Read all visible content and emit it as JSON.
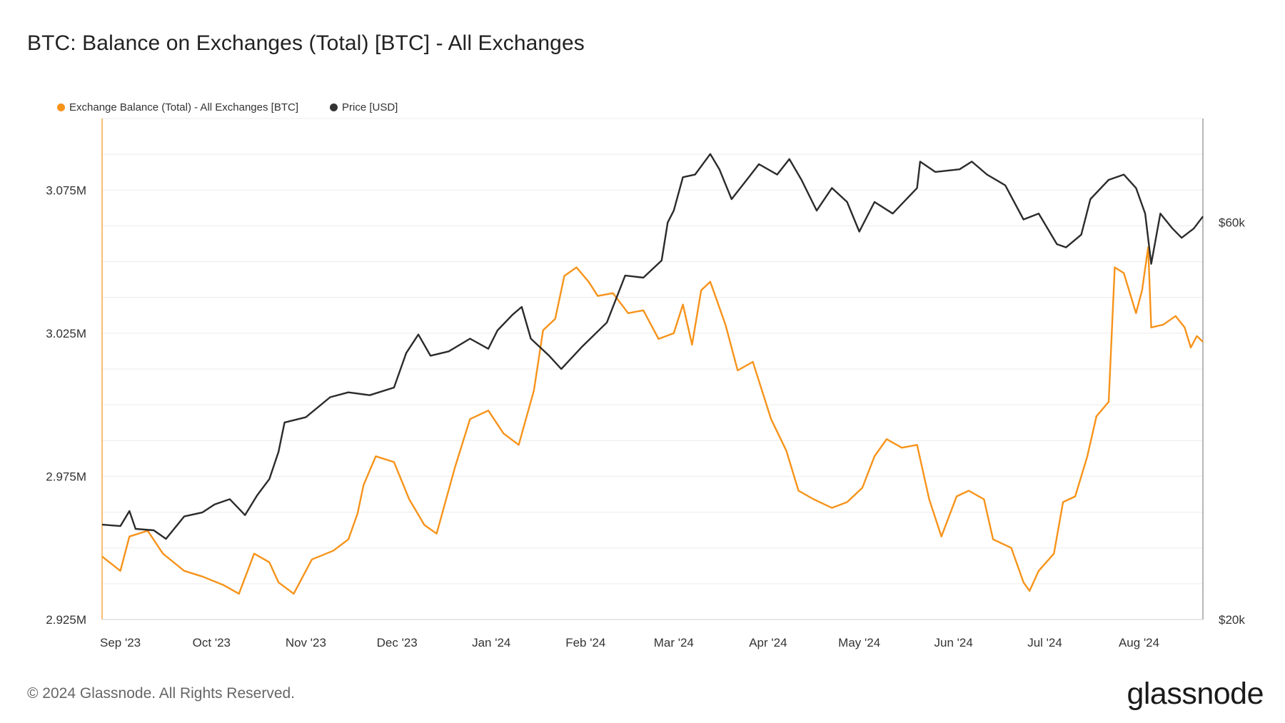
{
  "title": "BTC: Balance on Exchanges (Total) [BTC] - All Exchanges",
  "footer": "© 2024 Glassnode. All Rights Reserved.",
  "logo": "glassnode",
  "colors": {
    "balance": "#F7931A",
    "price": "#2b2b2b",
    "grid": "#ececec"
  },
  "legend": [
    {
      "label": "Exchange Balance (Total) - All Exchanges [BTC]",
      "color": "#F7931A"
    },
    {
      "label": "Price [USD]",
      "color": "#333333"
    }
  ],
  "chart_data": {
    "type": "line",
    "title": "BTC: Balance on Exchanges (Total) [BTC] - All Exchanges",
    "x_range": [
      "2023-08-26",
      "2024-08-22"
    ],
    "x_ticks": [
      {
        "date": "2023-09-01",
        "label": "Sep '23"
      },
      {
        "date": "2023-10-01",
        "label": "Oct '23"
      },
      {
        "date": "2023-11-01",
        "label": "Nov '23"
      },
      {
        "date": "2023-12-01",
        "label": "Dec '23"
      },
      {
        "date": "2024-01-01",
        "label": "Jan '24"
      },
      {
        "date": "2024-02-01",
        "label": "Feb '24"
      },
      {
        "date": "2024-03-01",
        "label": "Mar '24"
      },
      {
        "date": "2024-04-01",
        "label": "Apr '24"
      },
      {
        "date": "2024-05-01",
        "label": "May '24"
      },
      {
        "date": "2024-06-01",
        "label": "Jun '24"
      },
      {
        "date": "2024-07-01",
        "label": "Jul '24"
      },
      {
        "date": "2024-08-01",
        "label": "Aug '24"
      }
    ],
    "y_left": {
      "scale": "linear",
      "range": [
        2925000,
        3100000
      ],
      "ticks": [
        {
          "value": 2925000,
          "label": "2.925M"
        },
        {
          "value": 2975000,
          "label": "2.975M"
        },
        {
          "value": 3025000,
          "label": "3.025M"
        },
        {
          "value": 3075000,
          "label": "3.075M"
        }
      ]
    },
    "y_right": {
      "scale": "log",
      "range": [
        20000,
        80000
      ],
      "ticks": [
        {
          "value": 20000,
          "label": "$20k"
        },
        {
          "value": 60000,
          "label": "$60k"
        }
      ]
    },
    "grid": true,
    "legend_position": "top-left",
    "series": [
      {
        "name": "Exchange Balance (Total) - All Exchanges [BTC]",
        "axis": "left",
        "points": [
          [
            "2023-08-26",
            2947000
          ],
          [
            "2023-09-01",
            2942000
          ],
          [
            "2023-09-04",
            2954000
          ],
          [
            "2023-09-10",
            2956000
          ],
          [
            "2023-09-15",
            2948000
          ],
          [
            "2023-09-22",
            2942000
          ],
          [
            "2023-09-28",
            2940000
          ],
          [
            "2023-10-05",
            2937000
          ],
          [
            "2023-10-10",
            2934000
          ],
          [
            "2023-10-15",
            2948000
          ],
          [
            "2023-10-20",
            2945000
          ],
          [
            "2023-10-23",
            2938000
          ],
          [
            "2023-10-28",
            2934000
          ],
          [
            "2023-11-03",
            2946000
          ],
          [
            "2023-11-10",
            2949000
          ],
          [
            "2023-11-15",
            2953000
          ],
          [
            "2023-11-18",
            2962000
          ],
          [
            "2023-11-20",
            2972000
          ],
          [
            "2023-11-24",
            2982000
          ],
          [
            "2023-11-30",
            2980000
          ],
          [
            "2023-12-05",
            2967000
          ],
          [
            "2023-12-10",
            2958000
          ],
          [
            "2023-12-14",
            2955000
          ],
          [
            "2023-12-20",
            2978000
          ],
          [
            "2023-12-25",
            2995000
          ],
          [
            "2023-12-31",
            2998000
          ],
          [
            "2024-01-05",
            2990000
          ],
          [
            "2024-01-10",
            2986000
          ],
          [
            "2024-01-15",
            3005000
          ],
          [
            "2024-01-18",
            3026000
          ],
          [
            "2024-01-22",
            3030000
          ],
          [
            "2024-01-25",
            3045000
          ],
          [
            "2024-01-29",
            3048000
          ],
          [
            "2024-02-02",
            3043000
          ],
          [
            "2024-02-05",
            3038000
          ],
          [
            "2024-02-10",
            3039000
          ],
          [
            "2024-02-15",
            3032000
          ],
          [
            "2024-02-20",
            3033000
          ],
          [
            "2024-02-25",
            3023000
          ],
          [
            "2024-03-01",
            3025000
          ],
          [
            "2024-03-04",
            3035000
          ],
          [
            "2024-03-07",
            3021000
          ],
          [
            "2024-03-10",
            3040000
          ],
          [
            "2024-03-13",
            3043000
          ],
          [
            "2024-03-18",
            3028000
          ],
          [
            "2024-03-22",
            3012000
          ],
          [
            "2024-03-27",
            3015000
          ],
          [
            "2024-04-02",
            2995000
          ],
          [
            "2024-04-07",
            2984000
          ],
          [
            "2024-04-11",
            2970000
          ],
          [
            "2024-04-16",
            2967000
          ],
          [
            "2024-04-22",
            2964000
          ],
          [
            "2024-04-27",
            2966000
          ],
          [
            "2024-05-02",
            2971000
          ],
          [
            "2024-05-06",
            2982000
          ],
          [
            "2024-05-10",
            2988000
          ],
          [
            "2024-05-15",
            2985000
          ],
          [
            "2024-05-20",
            2986000
          ],
          [
            "2024-05-24",
            2967000
          ],
          [
            "2024-05-28",
            2954000
          ],
          [
            "2024-06-02",
            2968000
          ],
          [
            "2024-06-06",
            2970000
          ],
          [
            "2024-06-11",
            2967000
          ],
          [
            "2024-06-14",
            2953000
          ],
          [
            "2024-06-20",
            2950000
          ],
          [
            "2024-06-24",
            2938000
          ],
          [
            "2024-06-26",
            2935000
          ],
          [
            "2024-06-29",
            2942000
          ],
          [
            "2024-07-04",
            2948000
          ],
          [
            "2024-07-07",
            2966000
          ],
          [
            "2024-07-11",
            2968000
          ],
          [
            "2024-07-15",
            2982000
          ],
          [
            "2024-07-18",
            2996000
          ],
          [
            "2024-07-22",
            3001000
          ],
          [
            "2024-07-24",
            3048000
          ],
          [
            "2024-07-27",
            3046000
          ],
          [
            "2024-07-31",
            3032000
          ],
          [
            "2024-08-02",
            3040000
          ],
          [
            "2024-08-04",
            3055000
          ],
          [
            "2024-08-05",
            3027000
          ],
          [
            "2024-08-09",
            3028000
          ],
          [
            "2024-08-13",
            3031000
          ],
          [
            "2024-08-16",
            3027000
          ],
          [
            "2024-08-18",
            3020000
          ],
          [
            "2024-08-20",
            3024000
          ],
          [
            "2024-08-22",
            3022000
          ]
        ]
      },
      {
        "name": "Price [USD]",
        "axis": "right",
        "points": [
          [
            "2023-08-26",
            26000
          ],
          [
            "2023-09-01",
            25900
          ],
          [
            "2023-09-04",
            27000
          ],
          [
            "2023-09-06",
            25700
          ],
          [
            "2023-09-12",
            25600
          ],
          [
            "2023-09-16",
            25000
          ],
          [
            "2023-09-22",
            26600
          ],
          [
            "2023-09-28",
            26900
          ],
          [
            "2023-10-02",
            27500
          ],
          [
            "2023-10-07",
            27900
          ],
          [
            "2023-10-12",
            26700
          ],
          [
            "2023-10-16",
            28200
          ],
          [
            "2023-10-20",
            29500
          ],
          [
            "2023-10-23",
            31800
          ],
          [
            "2023-10-25",
            34500
          ],
          [
            "2023-11-01",
            35000
          ],
          [
            "2023-11-09",
            37000
          ],
          [
            "2023-11-15",
            37500
          ],
          [
            "2023-11-22",
            37200
          ],
          [
            "2023-11-30",
            38000
          ],
          [
            "2023-12-04",
            41800
          ],
          [
            "2023-12-08",
            44000
          ],
          [
            "2023-12-12",
            41500
          ],
          [
            "2023-12-18",
            42000
          ],
          [
            "2023-12-25",
            43500
          ],
          [
            "2023-12-31",
            42300
          ],
          [
            "2024-01-03",
            44500
          ],
          [
            "2024-01-08",
            46500
          ],
          [
            "2024-01-11",
            47500
          ],
          [
            "2024-01-14",
            43500
          ],
          [
            "2024-01-20",
            41500
          ],
          [
            "2024-01-24",
            40000
          ],
          [
            "2024-01-31",
            42600
          ],
          [
            "2024-02-08",
            45500
          ],
          [
            "2024-02-14",
            51800
          ],
          [
            "2024-02-20",
            51500
          ],
          [
            "2024-02-26",
            54000
          ],
          [
            "2024-02-28",
            60000
          ],
          [
            "2024-03-01",
            62000
          ],
          [
            "2024-03-04",
            68000
          ],
          [
            "2024-03-08",
            68500
          ],
          [
            "2024-03-13",
            72500
          ],
          [
            "2024-03-16",
            69500
          ],
          [
            "2024-03-20",
            64000
          ],
          [
            "2024-03-25",
            67500
          ],
          [
            "2024-03-29",
            70500
          ],
          [
            "2024-04-04",
            68500
          ],
          [
            "2024-04-08",
            71500
          ],
          [
            "2024-04-12",
            67500
          ],
          [
            "2024-04-17",
            62000
          ],
          [
            "2024-04-22",
            66000
          ],
          [
            "2024-04-27",
            63500
          ],
          [
            "2024-05-01",
            58500
          ],
          [
            "2024-05-06",
            63500
          ],
          [
            "2024-05-12",
            61500
          ],
          [
            "2024-05-20",
            66000
          ],
          [
            "2024-05-21",
            71000
          ],
          [
            "2024-05-26",
            69000
          ],
          [
            "2024-06-03",
            69500
          ],
          [
            "2024-06-07",
            71000
          ],
          [
            "2024-06-12",
            68500
          ],
          [
            "2024-06-18",
            66500
          ],
          [
            "2024-06-24",
            60500
          ],
          [
            "2024-06-29",
            61500
          ],
          [
            "2024-07-05",
            56500
          ],
          [
            "2024-07-08",
            56000
          ],
          [
            "2024-07-13",
            58000
          ],
          [
            "2024-07-16",
            64000
          ],
          [
            "2024-07-22",
            67500
          ],
          [
            "2024-07-27",
            68500
          ],
          [
            "2024-07-31",
            66000
          ],
          [
            "2024-08-03",
            61500
          ],
          [
            "2024-08-05",
            53500
          ],
          [
            "2024-08-08",
            61500
          ],
          [
            "2024-08-12",
            59000
          ],
          [
            "2024-08-15",
            57500
          ],
          [
            "2024-08-19",
            59000
          ],
          [
            "2024-08-22",
            61000
          ]
        ]
      }
    ]
  }
}
